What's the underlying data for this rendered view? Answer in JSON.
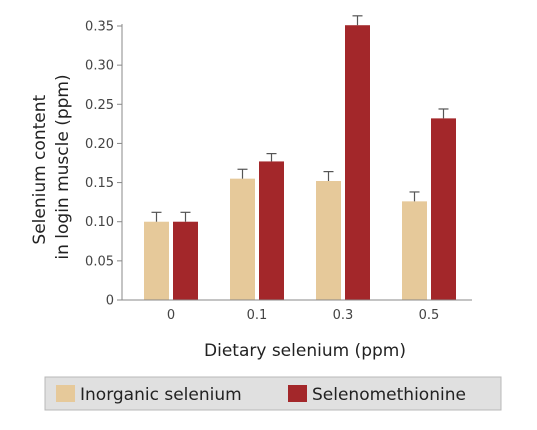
{
  "chart_data": {
    "type": "bar",
    "xlabel": "Dietary selenium (ppm)",
    "ylabel_lines": [
      "Selenium content",
      "in login muscle (ppm)"
    ],
    "categories": [
      "0",
      "0.1",
      "0.3",
      "0.5"
    ],
    "ylim": [
      0,
      0.35
    ],
    "yticks": [
      0,
      0.05,
      0.1,
      0.15,
      0.2,
      0.25,
      0.3,
      0.35
    ],
    "ytick_labels": [
      "0",
      "0.05",
      "0.10",
      "0.15",
      "0.20",
      "0.25",
      "0.30",
      "0.35"
    ],
    "grid": false,
    "legend_position": "bottom",
    "series": [
      {
        "name": "Inorganic selenium",
        "color": "#e6c99a",
        "values": [
          0.1,
          0.155,
          0.152,
          0.126
        ],
        "errors": [
          0.012,
          0.012,
          0.012,
          0.012
        ]
      },
      {
        "name": "Selenomethionine",
        "color": "#a3272a",
        "values": [
          0.1,
          0.177,
          0.351,
          0.232
        ],
        "errors": [
          0.012,
          0.01,
          0.012,
          0.012
        ]
      }
    ]
  }
}
